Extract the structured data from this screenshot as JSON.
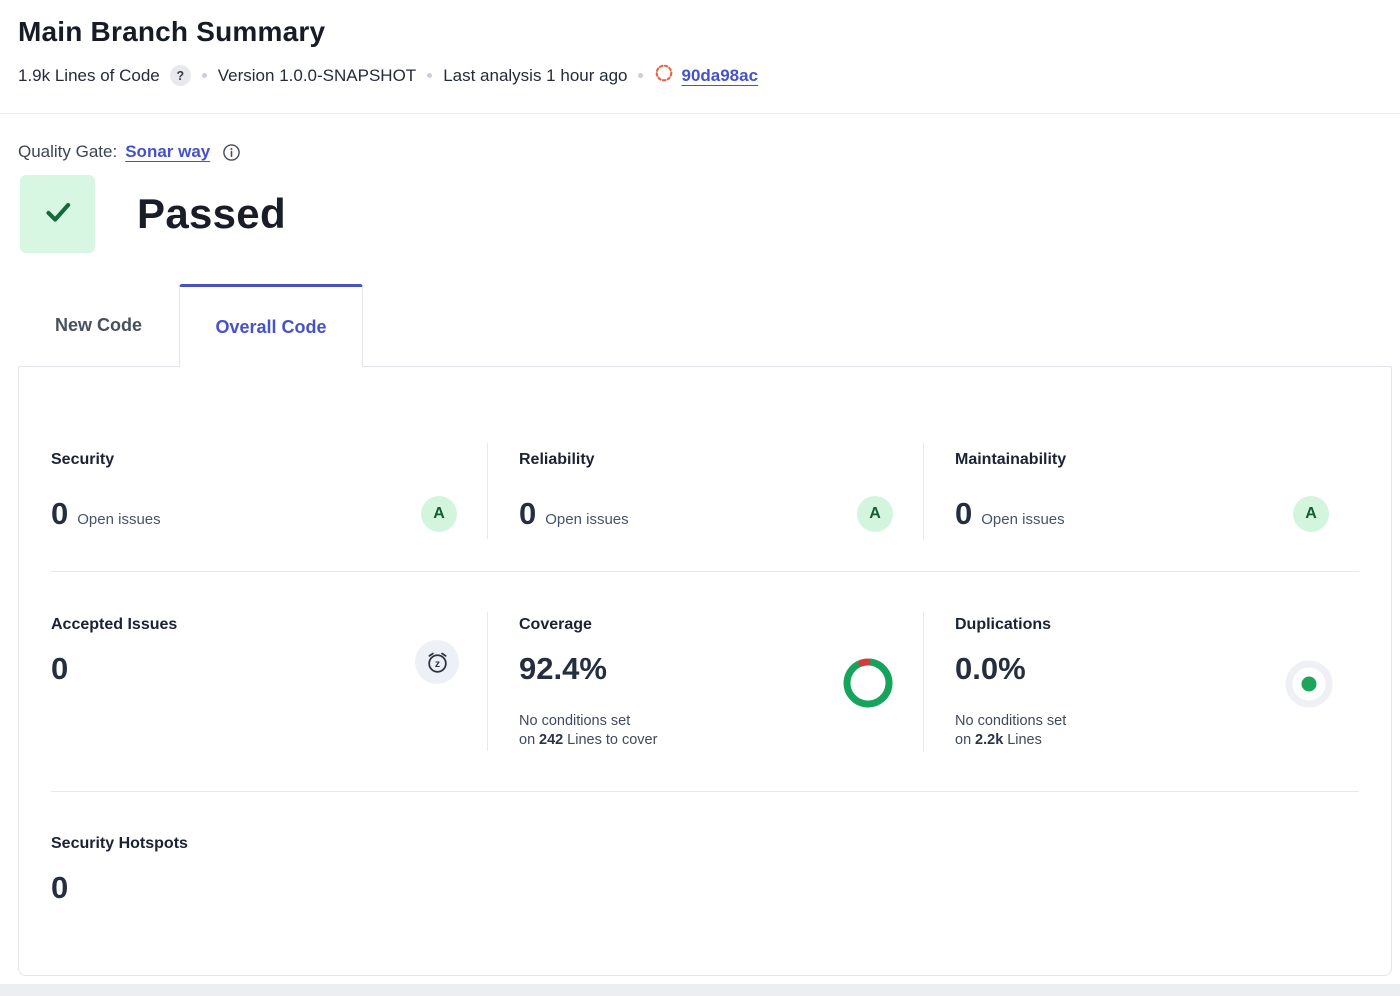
{
  "colors": {
    "accent": "#4652c8",
    "success_bg": "#d7f7e2",
    "success_fg": "#156a39",
    "rating_a_bg": "#d3f5de",
    "rating_a_fg": "#145c31",
    "donut_green": "#16a45c",
    "donut_red": "#d43a3e",
    "dup_dot_green": "#1ba65c",
    "commit_icon_orange": "#e0654b"
  },
  "header": {
    "title": "Main Branch Summary",
    "loc_value": "1.9k Lines of Code",
    "help_char": "?",
    "version": "Version 1.0.0-SNAPSHOT",
    "last_analysis": "Last analysis 1 hour ago",
    "commit_hash": "90da98ac"
  },
  "quality_gate": {
    "label": "Quality Gate:",
    "gate_name": "Sonar way",
    "status": "Passed"
  },
  "tabs": [
    {
      "label": "New Code",
      "active": false
    },
    {
      "label": "Overall Code",
      "active": true
    }
  ],
  "overall": {
    "security": {
      "title": "Security",
      "value": "0",
      "label": "Open issues",
      "rating": "A"
    },
    "reliability": {
      "title": "Reliability",
      "value": "0",
      "label": "Open issues",
      "rating": "A"
    },
    "maintainability": {
      "title": "Maintainability",
      "value": "0",
      "label": "Open issues",
      "rating": "A"
    },
    "accepted_issues": {
      "title": "Accepted Issues",
      "value": "0"
    },
    "coverage": {
      "title": "Coverage",
      "value": "92.4%",
      "percent": 92.4,
      "note_line1": "No conditions set",
      "note_prefix": "on",
      "note_value": "242",
      "note_suffix": "Lines to cover"
    },
    "duplications": {
      "title": "Duplications",
      "value": "0.0%",
      "note_line1": "No conditions set",
      "note_prefix": "on",
      "note_value": "2.2k",
      "note_suffix": "Lines"
    },
    "security_hotspots": {
      "title": "Security Hotspots",
      "value": "0"
    }
  }
}
